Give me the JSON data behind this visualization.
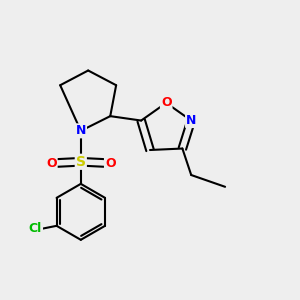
{
  "bg_color": "#eeeeee",
  "bond_color": "#000000",
  "bond_width": 1.5,
  "atom_colors": {
    "N": "#0000ff",
    "O": "#ff0000",
    "S": "#cccc00",
    "Cl": "#00bb00",
    "C": "#000000"
  },
  "font_size": 9,
  "fig_width": 3.0,
  "fig_height": 3.0,
  "dpi": 100
}
